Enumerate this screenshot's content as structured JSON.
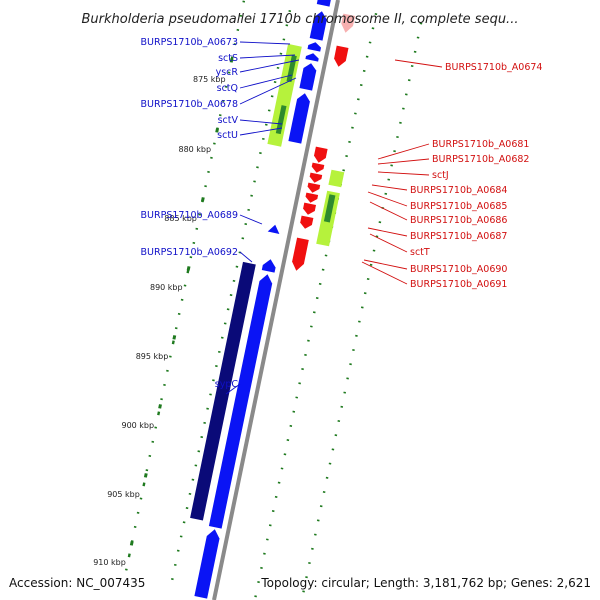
{
  "title": "Burkholderia pseudomallei 1710b chromosome II, complete sequ...",
  "footer": {
    "accession": "Accession: NC_007435",
    "topology": "Topology: circular; Length: 3,181,762 bp; Genes: 2,621"
  },
  "colors": {
    "forward": "#0a14f5",
    "forward_dark": "#0a0a78",
    "reverse": "#f01010",
    "reverse_pale": "#f7b0b0",
    "lime": "#b6f23c",
    "green": "#2e8a2e",
    "backbone": "#8a8a8a",
    "tick": "#1f7a1f",
    "label_left": "#1010c8",
    "label_right": "#d21010"
  },
  "ruler": {
    "ticks": [
      "875 kbp",
      "880 kbp",
      "885 kbp",
      "890 kbp",
      "895 kbp",
      "900 kbp",
      "905 kbp",
      "910 kbp"
    ]
  },
  "left_labels": [
    "BURPS1710b_A0673",
    "sctS",
    "yscR",
    "sctQ",
    "BURPS1710b_A0678",
    "sctV",
    "sctU",
    "BURPS1710b_A0689",
    "BURPS1710b_A0692",
    "sypC"
  ],
  "right_labels": [
    "BURPS1710b_A0674",
    "BURPS1710b_A0681",
    "BURPS1710b_A0682",
    "sctJ",
    "BURPS1710b_A0684",
    "BURPS1710b_A0685",
    "BURPS1710b_A0686",
    "BURPS1710b_A0687",
    "sctT",
    "BURPS1710b_A0690",
    "BURPS1710b_A0691"
  ]
}
